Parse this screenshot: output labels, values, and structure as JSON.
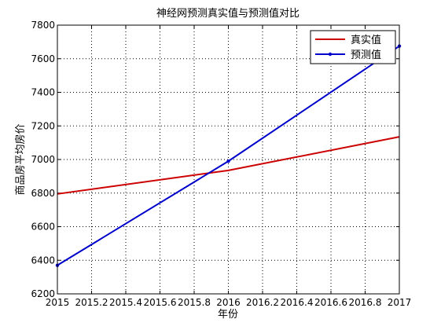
{
  "chart_data": {
    "type": "line",
    "title": "神经网预测真实值与预测值对比",
    "xlabel": "年份",
    "ylabel": "商品房平均房价",
    "xlim": [
      2015,
      2017
    ],
    "ylim": [
      6200,
      7800
    ],
    "xticks": [
      "2015",
      "2015.2",
      "2015.4",
      "2015.6",
      "2015.8",
      "2016",
      "2016.2",
      "2016.4",
      "2016.6",
      "2016.8",
      "2017"
    ],
    "yticks": [
      "6200",
      "6400",
      "6600",
      "6800",
      "7000",
      "7200",
      "7400",
      "7600",
      "7800"
    ],
    "grid": true,
    "legend_position": "top-right",
    "series": [
      {
        "name": "真实值",
        "color": "#cc0000",
        "marker": "none",
        "x": [
          2015,
          2016,
          2017
        ],
        "y": [
          6795,
          6935,
          7135
        ]
      },
      {
        "name": "预测值",
        "color": "#0000cc",
        "marker": "dot",
        "x": [
          2015,
          2016,
          2017
        ],
        "y": [
          6370,
          6990,
          7675
        ]
      }
    ]
  }
}
